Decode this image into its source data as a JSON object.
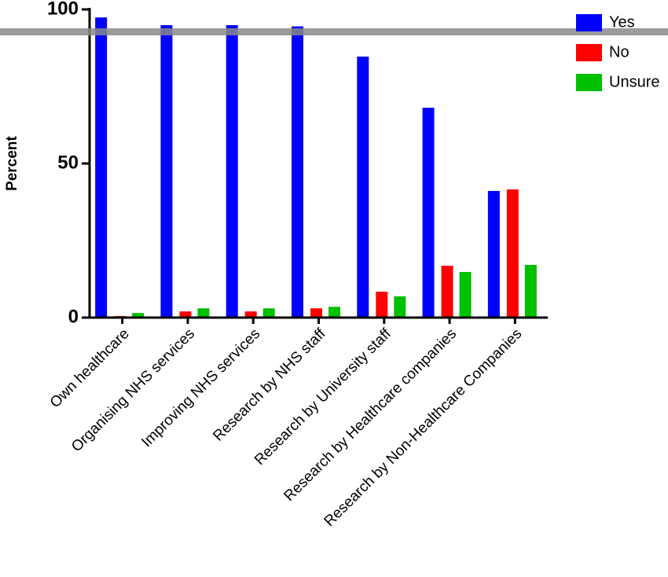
{
  "chart_data": {
    "type": "bar",
    "y_label": "Percent",
    "categories": [
      "Own healthcare",
      "Organising NHS services",
      "Improving NHS services",
      "Research by NHS staff",
      "Research by University staff",
      "Research by Healthcare companies",
      "Research by Non-Healthcare Companies"
    ],
    "series": [
      {
        "name": "Yes",
        "color": "#0000ff",
        "values": [
          97.4,
          94.9,
          94.9,
          94.5,
          84.7,
          68.1,
          41.1
        ]
      },
      {
        "name": "No",
        "color": "#ff0000",
        "values": [
          0.5,
          2,
          2,
          3,
          8.4,
          16.8,
          41.6
        ]
      },
      {
        "name": "Unsure",
        "color": "#00c000",
        "values": [
          1.5,
          3,
          3,
          3.5,
          6.9,
          14.8,
          17.1
        ]
      }
    ],
    "ylim": [
      0,
      100
    ],
    "yticks": [
      0,
      50,
      100
    ],
    "legend": "top-right"
  }
}
